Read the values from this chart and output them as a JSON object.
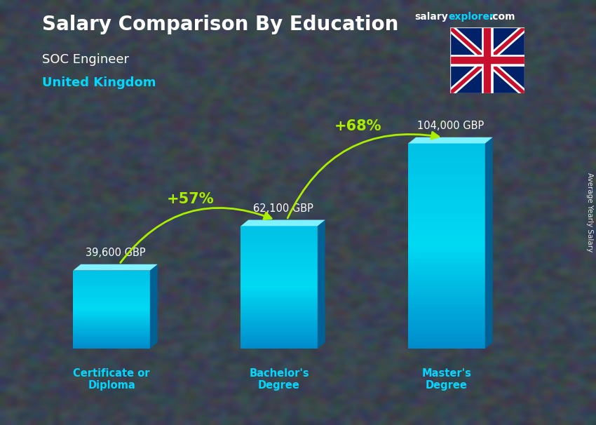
{
  "title": "Salary Comparison By Education",
  "subtitle_job": "SOC Engineer",
  "subtitle_location": "United Kingdom",
  "categories": [
    "Certificate or\nDiploma",
    "Bachelor's\nDegree",
    "Master's\nDegree"
  ],
  "values": [
    39600,
    62100,
    104000
  ],
  "value_labels": [
    "39,600 GBP",
    "62,100 GBP",
    "104,000 GBP"
  ],
  "pct_labels": [
    "+57%",
    "+68%"
  ],
  "bar_color_light": "#00d8f0",
  "bar_color_mid": "#00b0d8",
  "bar_color_dark": "#0070a0",
  "bar_top_color": "#80eeff",
  "bg_color": "#5a6a7a",
  "title_color": "#ffffff",
  "subtitle_job_color": "#ffffff",
  "subtitle_location_color": "#00d8ff",
  "value_label_color": "#ffffff",
  "pct_color": "#aaee00",
  "xlabel_color": "#00d8ff",
  "ylabel_text": "Average Yearly Salary",
  "brand_salary_color": "#ffffff",
  "brand_explorer_color": "#00d8ff",
  "ylim_max": 125000,
  "bar_width": 0.55,
  "x_positions": [
    0.5,
    1.7,
    2.9
  ]
}
